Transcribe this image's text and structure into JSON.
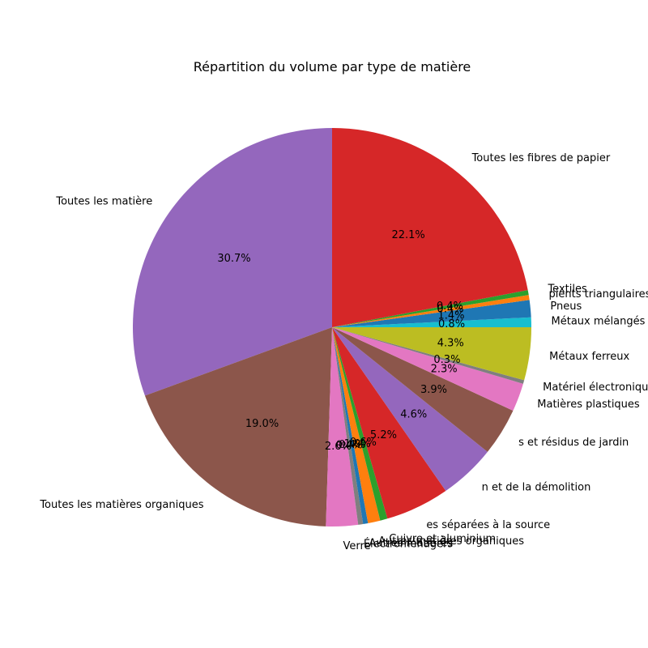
{
  "chart_data": {
    "type": "pie",
    "title": "Répartition du volume par type de matière",
    "start_angle_deg": 90,
    "direction": "counterclockwise",
    "slices": [
      {
        "label": "Toutes les matières recyclables",
        "display_label": "Toutes les matière",
        "percent": 30.7,
        "color": "#9467bd"
      },
      {
        "label": "Toutes les matières organiques",
        "percent": 19.0,
        "color": "#8c564b"
      },
      {
        "label": "Verre",
        "percent": 2.6,
        "color": "#e377c2"
      },
      {
        "label": "Électroménagers",
        "percent": 0.4,
        "color": "#7f7f7f"
      },
      {
        "label": "Autres matières",
        "percent": 0.4,
        "color": "#1f77b4"
      },
      {
        "label": "Autres matières organiques",
        "percent": 1.0,
        "color": "#ff7f0e"
      },
      {
        "label": "Cuivre et aluminium",
        "percent": 0.6,
        "color": "#2ca02c"
      },
      {
        "label": "Matières séparées à la source",
        "display_label": "es séparées à la source",
        "percent": 5.2,
        "color": "#d62728"
      },
      {
        "label": "Résidus de la construction et de la démolition",
        "display_label": "n et de la démolition",
        "percent": 4.6,
        "color": "#9467bd"
      },
      {
        "label": "Feuilles et résidus de jardin",
        "display_label": "s et résidus de jardin",
        "percent": 3.9,
        "color": "#8c564b"
      },
      {
        "label": "Matières plastiques",
        "percent": 2.3,
        "color": "#e377c2"
      },
      {
        "label": "Matériel électronique",
        "percent": 0.3,
        "color": "#7f7f7f"
      },
      {
        "label": "Métaux ferreux",
        "percent": 4.3,
        "color": "#bcbd22"
      },
      {
        "label": "Métaux mélangés",
        "percent": 0.8,
        "color": "#17becf"
      },
      {
        "label": "Pneus",
        "percent": 1.4,
        "color": "#1f77b4"
      },
      {
        "label": "Récipients triangulaires et aseptiques",
        "display_label": "pients triangulaires et aseptiques",
        "percent": 0.4,
        "color": "#ff7f0e"
      },
      {
        "label": "Textiles",
        "percent": 0.4,
        "color": "#2ca02c"
      },
      {
        "label": "Toutes les fibres de papier",
        "percent": 22.1,
        "color": "#d62728"
      }
    ]
  }
}
